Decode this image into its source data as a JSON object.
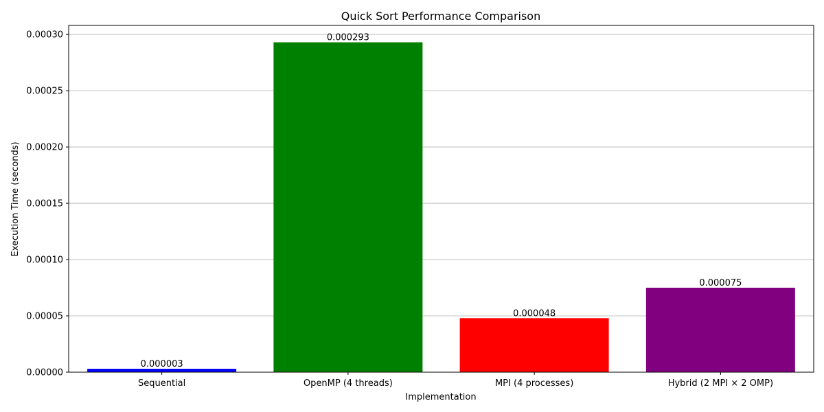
{
  "chart_data": {
    "type": "bar",
    "title": "Quick Sort Performance Comparison",
    "xlabel": "Implementation",
    "ylabel": "Execution Time (seconds)",
    "categories": [
      "Sequential",
      "OpenMP (4 threads)",
      "MPI (4 processes)",
      "Hybrid (2 MPI × 2 OMP)"
    ],
    "values": [
      3e-06,
      0.000293,
      4.8e-05,
      7.5e-05
    ],
    "value_labels": [
      "0.000003",
      "0.000293",
      "0.000048",
      "0.000075"
    ],
    "colors": [
      "#0000ff",
      "#008000",
      "#ff0000",
      "#800080"
    ],
    "ylim": [
      0,
      0.000308
    ],
    "yticks": [
      0,
      5e-05,
      0.0001,
      0.00015,
      0.0002,
      0.00025,
      0.0003
    ],
    "ytick_labels": [
      "0.00000",
      "0.00005",
      "0.00010",
      "0.00015",
      "0.00020",
      "0.00025",
      "0.00030"
    ],
    "grid": "y",
    "legend": "none"
  }
}
